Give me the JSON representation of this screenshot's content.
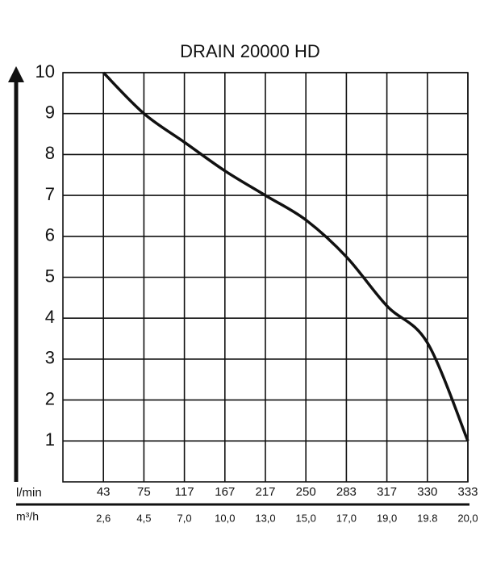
{
  "chart_data": {
    "type": "line",
    "title": "DRAIN 20000 HD",
    "x_label": "l/min",
    "x2_label": "m³/h",
    "categories": [
      "43",
      "75",
      "117",
      "167",
      "217",
      "250",
      "283",
      "317",
      "330",
      "333"
    ],
    "x2_categories": [
      "2,6",
      "4,5",
      "7,0",
      "10,0",
      "13,0",
      "15,0",
      "17,0",
      "19,0",
      "19.8",
      "20,0"
    ],
    "values": [
      10,
      9,
      8.3,
      7.6,
      7,
      6.4,
      5.5,
      4.3,
      3.4,
      1
    ],
    "color": "#111111",
    "ylim": [
      0,
      10
    ],
    "yticks": [
      1,
      2,
      3,
      4,
      5,
      6,
      7,
      8,
      9,
      10
    ],
    "grid": true
  }
}
